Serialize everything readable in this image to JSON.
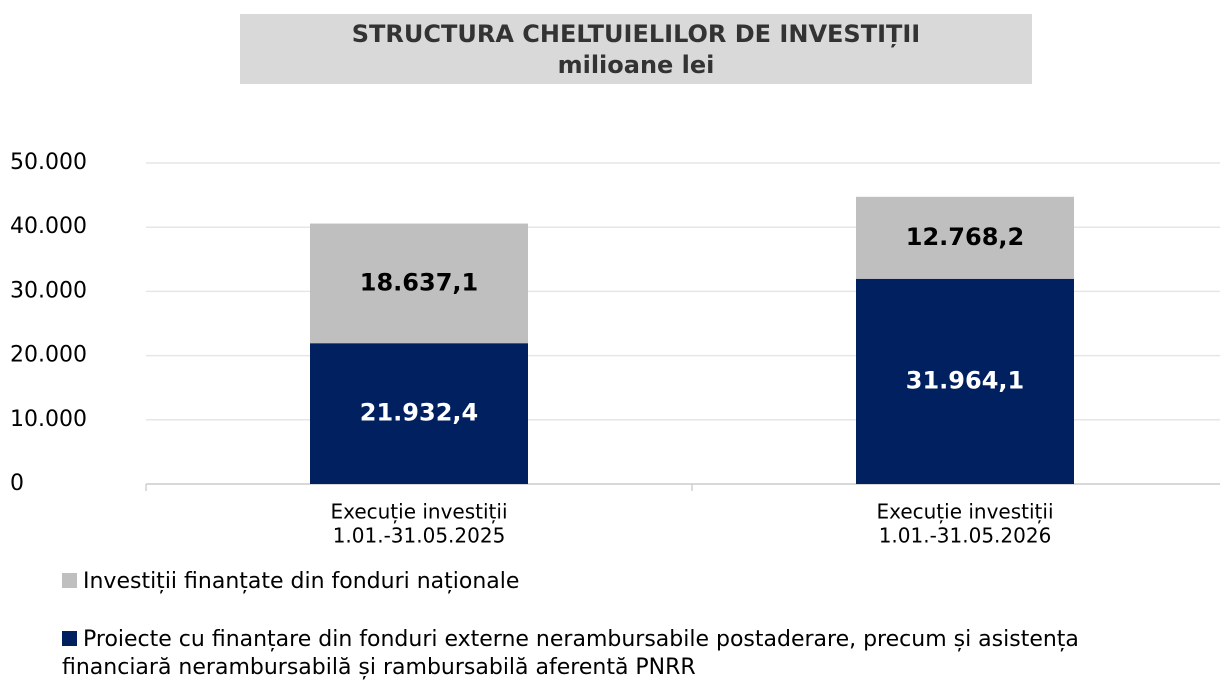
{
  "chart_data": {
    "type": "stacked-bar",
    "title": "STRUCTURA CHELTUIELILOR DE INVESTIȚII",
    "subtitle": "milioane lei",
    "categories": [
      [
        "Execuție investiții",
        "1.01.-31.05.2025"
      ],
      [
        "Execuție investiții",
        "1.01.-31.05.2026"
      ]
    ],
    "series": [
      {
        "name": "Proiecte cu finanțare din fonduri externe nerambursabile postaderare, precum și asistența financiară nerambursabilă și rambursabilă aferentă PNRR",
        "color": "#002060",
        "values": [
          21932.4,
          31964.1
        ],
        "value_labels": [
          "21.932,4",
          "31.964,1"
        ]
      },
      {
        "name": "Investiții finanțate din fonduri naționale",
        "color": "#bfbfbf",
        "values": [
          18637.1,
          12768.2
        ],
        "value_labels": [
          "18.637,1",
          "12.768,2"
        ]
      }
    ],
    "ylim": [
      0,
      50000
    ],
    "yticks": [
      0,
      {
        "value": 10000,
        "label": "10.000"
      },
      {
        "value": 20000,
        "label": "20.000"
      },
      {
        "value": 30000,
        "label": "30.000"
      },
      {
        "value": 40000,
        "label": "40.000"
      },
      {
        "value": 50000,
        "label": "50.000"
      }
    ],
    "grid": true
  }
}
